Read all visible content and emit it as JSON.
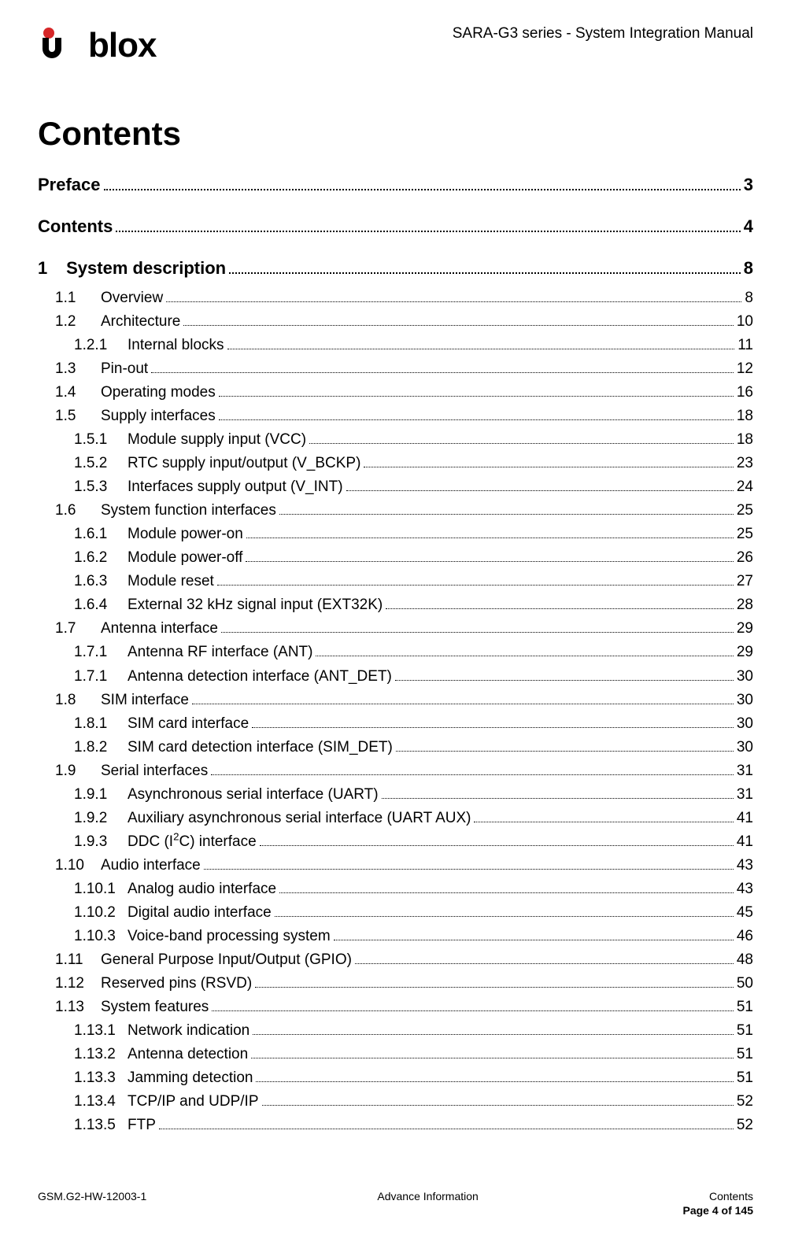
{
  "header": {
    "brand_text": "blox",
    "brand_prefix": "",
    "doc_title": "SARA-G3 series - System Integration Manual"
  },
  "heading": "Contents",
  "colors": {
    "brand_dot_red": "#d62728",
    "brand_text": "#000000"
  },
  "toc": [
    {
      "level": 0,
      "num": "",
      "label": "Preface",
      "page": "3"
    },
    {
      "level": 0,
      "num": "",
      "label": "Contents",
      "page": "4"
    },
    {
      "level": 0,
      "num": "1",
      "label": "System description",
      "page": "8"
    },
    {
      "level": 1,
      "num": "1.1",
      "label": "Overview",
      "page": "8"
    },
    {
      "level": 1,
      "num": "1.2",
      "label": "Architecture",
      "page": "10"
    },
    {
      "level": 2,
      "num": "1.2.1",
      "label": "Internal blocks",
      "page": "11"
    },
    {
      "level": 1,
      "num": "1.3",
      "label": "Pin-out",
      "page": "12"
    },
    {
      "level": 1,
      "num": "1.4",
      "label": "Operating modes",
      "page": "16"
    },
    {
      "level": 1,
      "num": "1.5",
      "label": "Supply interfaces",
      "page": "18"
    },
    {
      "level": 2,
      "num": "1.5.1",
      "label": "Module supply input (VCC)",
      "page": "18"
    },
    {
      "level": 2,
      "num": "1.5.2",
      "label": "RTC supply input/output (V_BCKP)",
      "page": "23"
    },
    {
      "level": 2,
      "num": "1.5.3",
      "label": "Interfaces supply output (V_INT)",
      "page": "24"
    },
    {
      "level": 1,
      "num": "1.6",
      "label": "System function interfaces",
      "page": "25"
    },
    {
      "level": 2,
      "num": "1.6.1",
      "label": "Module power-on",
      "page": "25"
    },
    {
      "level": 2,
      "num": "1.6.2",
      "label": "Module power-off",
      "page": "26"
    },
    {
      "level": 2,
      "num": "1.6.3",
      "label": "Module reset",
      "page": "27"
    },
    {
      "level": 2,
      "num": "1.6.4",
      "label": "External 32 kHz signal input (EXT32K)",
      "page": "28"
    },
    {
      "level": 1,
      "num": "1.7",
      "label": "Antenna interface",
      "page": "29"
    },
    {
      "level": 2,
      "num": "1.7.1",
      "label": "Antenna RF interface (ANT)",
      "page": "29"
    },
    {
      "level": 2,
      "num": "1.7.1",
      "label": "Antenna detection interface (ANT_DET)",
      "page": "30"
    },
    {
      "level": 1,
      "num": "1.8",
      "label": "SIM interface",
      "page": "30"
    },
    {
      "level": 2,
      "num": "1.8.1",
      "label": "SIM card interface",
      "page": "30"
    },
    {
      "level": 2,
      "num": "1.8.2",
      "label": "SIM card detection interface (SIM_DET)",
      "page": "30"
    },
    {
      "level": 1,
      "num": "1.9",
      "label": "Serial interfaces",
      "page": "31"
    },
    {
      "level": 2,
      "num": "1.9.1",
      "label": "Asynchronous serial interface (UART)",
      "page": "31"
    },
    {
      "level": 2,
      "num": "1.9.2",
      "label": "Auxiliary asynchronous serial interface (UART AUX)",
      "page": "41"
    },
    {
      "level": 2,
      "num": "1.9.3",
      "label": "DDC (I²C) interface",
      "page": "41"
    },
    {
      "level": 1,
      "num": "1.10",
      "label": "Audio interface",
      "page": "43"
    },
    {
      "level": 2,
      "num": "1.10.1",
      "label": "Analog audio interface",
      "page": "43"
    },
    {
      "level": 2,
      "num": "1.10.2",
      "label": "Digital audio interface",
      "page": "45"
    },
    {
      "level": 2,
      "num": "1.10.3",
      "label": "Voice-band processing system",
      "page": "46"
    },
    {
      "level": 1,
      "num": "1.11",
      "label": "General Purpose Input/Output (GPIO)",
      "page": "48"
    },
    {
      "level": 1,
      "num": "1.12",
      "label": "Reserved pins (RSVD)",
      "page": "50"
    },
    {
      "level": 1,
      "num": "1.13",
      "label": "System features",
      "page": "51"
    },
    {
      "level": 2,
      "num": "1.13.1",
      "label": "Network indication",
      "page": "51"
    },
    {
      "level": 2,
      "num": "1.13.2",
      "label": "Antenna detection",
      "page": "51"
    },
    {
      "level": 2,
      "num": "1.13.3",
      "label": "Jamming detection",
      "page": "51"
    },
    {
      "level": 2,
      "num": "1.13.4",
      "label": "TCP/IP and UDP/IP",
      "page": "52"
    },
    {
      "level": 2,
      "num": "1.13.5",
      "label": "FTP",
      "page": "52"
    }
  ],
  "footer": {
    "left": "GSM.G2-HW-12003-1",
    "center": "Advance Information",
    "right": "Contents",
    "pageline": "Page 4 of 145"
  }
}
